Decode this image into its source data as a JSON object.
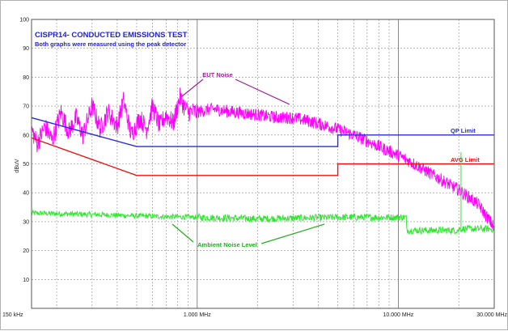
{
  "chart_data": {
    "type": "line",
    "title": "CISPR14- CONDUCTED EMISSIONS TEST",
    "subtitle": "Both graphs were measured using the peak detector",
    "ylabel": "dBuV",
    "xlabel": "",
    "x_scale": "log",
    "xlim": [
      150000,
      30000000
    ],
    "ylim": [
      0,
      100
    ],
    "grid": true,
    "y_ticks": [
      10,
      20,
      30,
      40,
      50,
      60,
      70,
      80,
      90,
      100
    ],
    "x_tick_labels": [
      {
        "x": 150000,
        "label": "150 kHz"
      },
      {
        "x": 1000000,
        "label": "1.000 MHz"
      },
      {
        "x": 10000000,
        "label": "10.000 MHz"
      },
      {
        "x": 30000000,
        "label": "30.000 MHz"
      }
    ],
    "series": [
      {
        "name": "QP Limit",
        "color": "#2b2bd6",
        "points": [
          [
            150000,
            66
          ],
          [
            500000,
            56
          ],
          [
            5000000,
            56
          ],
          [
            5000000,
            60
          ],
          [
            30000000,
            60
          ]
        ]
      },
      {
        "name": "AVG Limit",
        "color": "#ee1111",
        "points": [
          [
            150000,
            59
          ],
          [
            500000,
            46
          ],
          [
            5000000,
            46
          ],
          [
            5000000,
            50
          ],
          [
            30000000,
            50
          ]
        ]
      },
      {
        "name": "EUT Noise",
        "color": "#ff00ff",
        "points": [
          [
            150000,
            62
          ],
          [
            160000,
            57
          ],
          [
            175000,
            63
          ],
          [
            190000,
            58
          ],
          [
            210000,
            68
          ],
          [
            230000,
            61
          ],
          [
            250000,
            66
          ],
          [
            270000,
            60
          ],
          [
            300000,
            70
          ],
          [
            330000,
            62
          ],
          [
            360000,
            68
          ],
          [
            400000,
            63
          ],
          [
            430000,
            72
          ],
          [
            470000,
            60
          ],
          [
            520000,
            66
          ],
          [
            560000,
            62
          ],
          [
            600000,
            70
          ],
          [
            650000,
            63
          ],
          [
            700000,
            67
          ],
          [
            760000,
            64
          ],
          [
            820000,
            73
          ],
          [
            860000,
            70
          ],
          [
            900000,
            68
          ],
          [
            1000000,
            68
          ],
          [
            1200000,
            69
          ],
          [
            1500000,
            68
          ],
          [
            2000000,
            67
          ],
          [
            2500000,
            66
          ],
          [
            3000000,
            66
          ],
          [
            3500000,
            65
          ],
          [
            4000000,
            64
          ],
          [
            5000000,
            62
          ],
          [
            6000000,
            60
          ],
          [
            7000000,
            58
          ],
          [
            8000000,
            56
          ],
          [
            10000000,
            53
          ],
          [
            12000000,
            50
          ],
          [
            15000000,
            46
          ],
          [
            20000000,
            41
          ],
          [
            25000000,
            36
          ],
          [
            30000000,
            28
          ]
        ]
      },
      {
        "name": "Ambient Noise Level",
        "color": "#2ee82e",
        "points": [
          [
            150000,
            33
          ],
          [
            300000,
            32.5
          ],
          [
            500000,
            32
          ],
          [
            1000000,
            31.5
          ],
          [
            2000000,
            31
          ],
          [
            5000000,
            31.5
          ],
          [
            8000000,
            31.5
          ],
          [
            11000000,
            31.5
          ],
          [
            11000000,
            27
          ],
          [
            20000000,
            27
          ],
          [
            20000000,
            27.5
          ],
          [
            30000000,
            27.5
          ]
        ]
      }
    ],
    "annotations": [
      {
        "text": "QP Limit",
        "color": "#2b2bd6"
      },
      {
        "text": "AVG Limit",
        "color": "#ee1111"
      },
      {
        "text": "EUT Noise",
        "color": "#a0209a"
      },
      {
        "text": "Ambient Noise Level",
        "color": "#1fb01f"
      }
    ]
  }
}
